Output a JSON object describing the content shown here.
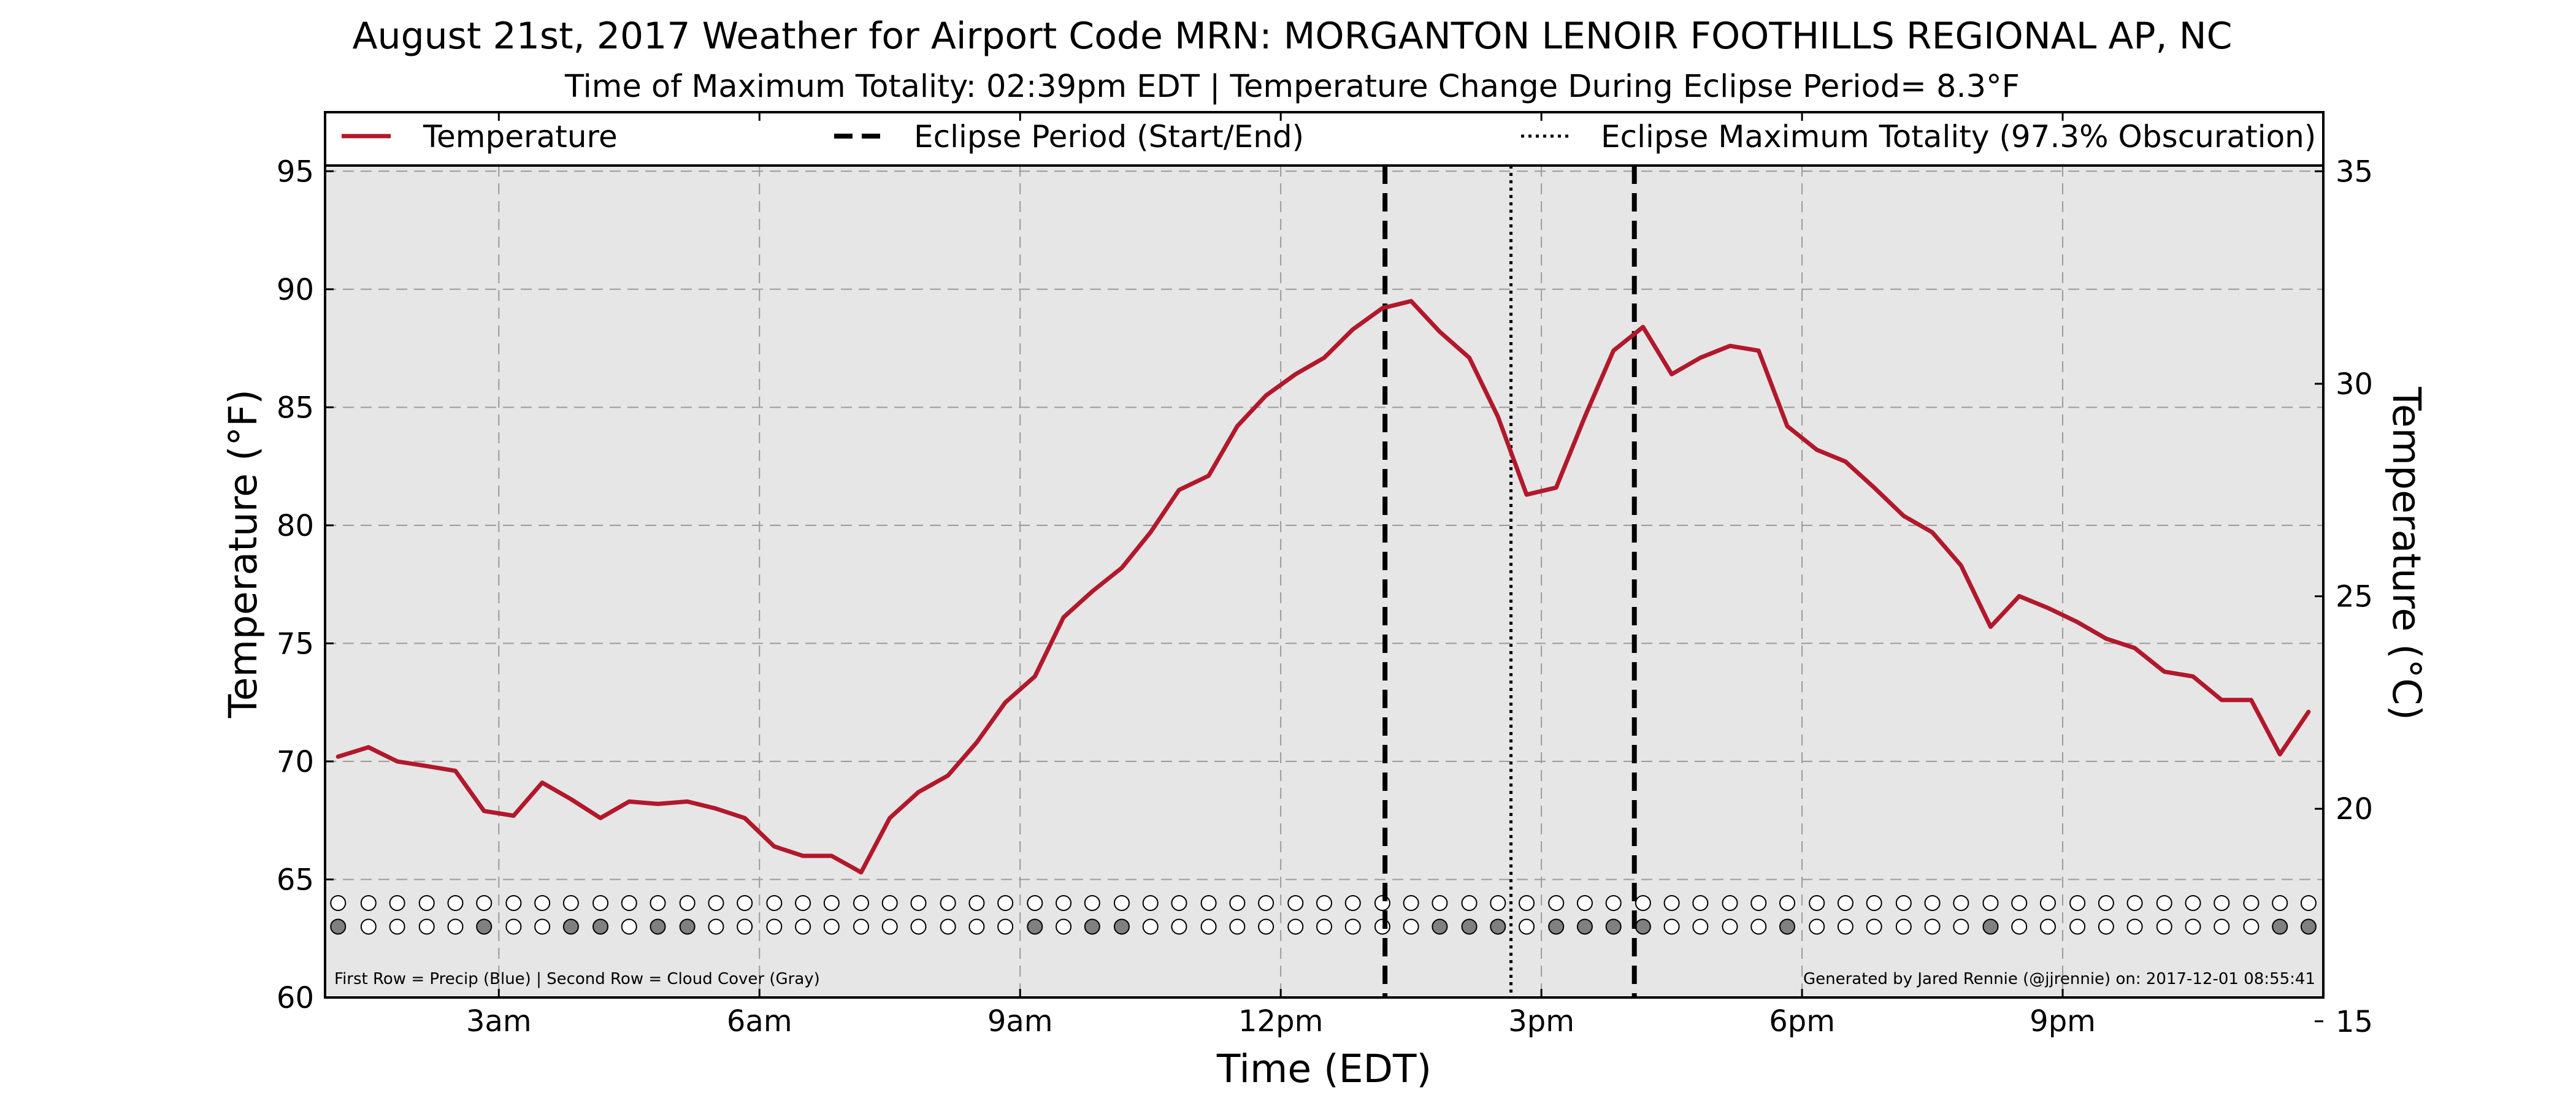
{
  "chart_data": {
    "type": "line",
    "title": "August 21st, 2017 Weather for Airport Code MRN: MORGANTON LENOIR FOOTHILLS REGIONAL AP, NC",
    "subtitle": "Time of Maximum Totality: 02:39pm EDT | Temperature Change During Eclipse Period= 8.3°F",
    "xlabel": "Time (EDT)",
    "ylabel": "Temperature (°F)",
    "ylabel_right": "Temperature (°C)",
    "xlim": [
      1,
      24
    ],
    "ylim": [
      60,
      97.5
    ],
    "ylim_right": [
      15.56,
      36.39
    ],
    "x_ticks": [
      {
        "value": 3,
        "label": "3am"
      },
      {
        "value": 6,
        "label": "6am"
      },
      {
        "value": 9,
        "label": "9am"
      },
      {
        "value": 12,
        "label": "12pm"
      },
      {
        "value": 15,
        "label": "3pm"
      },
      {
        "value": 18,
        "label": "6pm"
      },
      {
        "value": 21,
        "label": "9pm"
      }
    ],
    "y_ticks": [
      60,
      65,
      70,
      75,
      80,
      85,
      90,
      95
    ],
    "y_ticks_right": [
      15,
      20,
      25,
      30,
      35
    ],
    "grid": true,
    "legend_placement": "top, full width",
    "legend": [
      {
        "label": "Temperature",
        "style": "solid",
        "color": "#b2182b"
      },
      {
        "label": "Eclipse Period (Start/End)",
        "style": "dashed",
        "color": "#000000"
      },
      {
        "label": "Eclipse Maximum Totality (97.3% Obscuration)",
        "style": "dotted",
        "color": "#000000"
      }
    ],
    "series": [
      {
        "name": "Temperature",
        "color": "#b2182b",
        "x": [
          1.15,
          1.5,
          1.83,
          2.17,
          2.5,
          2.83,
          3.17,
          3.5,
          3.83,
          4.17,
          4.5,
          4.83,
          5.17,
          5.5,
          5.83,
          6.17,
          6.5,
          6.83,
          7.17,
          7.5,
          7.83,
          8.17,
          8.5,
          8.83,
          9.17,
          9.5,
          9.83,
          10.17,
          10.5,
          10.83,
          11.17,
          11.5,
          11.83,
          12.17,
          12.5,
          12.83,
          13.17,
          13.5,
          13.83,
          14.17,
          14.5,
          14.83,
          15.17,
          15.5,
          15.83,
          16.17,
          16.5,
          16.83,
          17.17,
          17.5,
          17.83,
          18.17,
          18.5,
          18.83,
          19.17,
          19.5,
          19.83,
          20.17,
          20.5,
          20.83,
          21.17,
          21.5,
          21.83,
          22.17,
          22.5,
          22.83,
          23.17,
          23.5,
          23.83
        ],
        "values": [
          70.2,
          70.6,
          70.0,
          69.8,
          69.6,
          67.9,
          67.7,
          69.1,
          68.4,
          67.6,
          68.3,
          68.2,
          68.3,
          68.0,
          67.6,
          66.4,
          66.0,
          66.0,
          65.3,
          67.6,
          68.7,
          69.4,
          70.8,
          72.5,
          73.6,
          76.1,
          77.2,
          78.2,
          79.7,
          81.5,
          82.1,
          84.2,
          85.5,
          86.4,
          87.1,
          88.3,
          89.2,
          89.5,
          88.2,
          87.1,
          84.6,
          81.3,
          81.6,
          84.6,
          87.4,
          88.4,
          86.4,
          87.1,
          87.6,
          87.4,
          84.2,
          83.2,
          82.7,
          81.6,
          80.4,
          79.7,
          78.3,
          75.7,
          77.0,
          76.5,
          75.9,
          75.2,
          74.8,
          73.8,
          73.6,
          72.6,
          72.6,
          70.3,
          72.1
        ]
      }
    ],
    "eclipse_start": 13.2,
    "eclipse_max": 14.65,
    "eclipse_end": 16.07,
    "precip_row_y": 64.0,
    "cloud_row_y": 63.0,
    "precip_flags": [
      0,
      0,
      0,
      0,
      0,
      0,
      0,
      0,
      0,
      0,
      0,
      0,
      0,
      0,
      0,
      0,
      0,
      0,
      0,
      0,
      0,
      0,
      0,
      0,
      0,
      0,
      0,
      0,
      0,
      0,
      0,
      0,
      0,
      0,
      0,
      0,
      0,
      0,
      0,
      0,
      0,
      0,
      0,
      0,
      0,
      0,
      0,
      0,
      0,
      0,
      0,
      0,
      0,
      0,
      0,
      0,
      0,
      0,
      0,
      0,
      0,
      0,
      0,
      0,
      0,
      0,
      0,
      0,
      0
    ],
    "cloud_flags": [
      1,
      0,
      0,
      0,
      0,
      1,
      0,
      0,
      1,
      1,
      0,
      1,
      1,
      0,
      0,
      0,
      0,
      0,
      0,
      0,
      0,
      0,
      0,
      0,
      1,
      0,
      1,
      1,
      0,
      0,
      0,
      0,
      0,
      0,
      0,
      0,
      0,
      0,
      1,
      1,
      1,
      0,
      1,
      1,
      1,
      1,
      0,
      0,
      0,
      0,
      1,
      0,
      0,
      0,
      0,
      0,
      0,
      1,
      0,
      0,
      0,
      0,
      0,
      0,
      0,
      0,
      0,
      1,
      1
    ],
    "precip_color": "#0000ff",
    "cloud_color": "#808080",
    "empty_marker_color": "#ffffff",
    "plot_background": "#e6e6e6"
  },
  "footer_left": "First Row = Precip (Blue) | Second Row = Cloud Cover (Gray)",
  "footer_right": "Generated by Jared Rennie (@jjrennie) on: 2017-12-01 08:55:41"
}
